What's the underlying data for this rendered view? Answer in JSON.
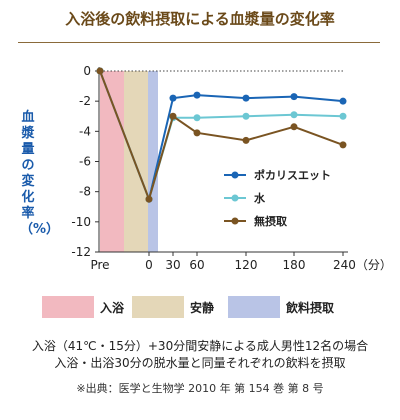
{
  "title": "入浴後の飲料摂取による血漿量の変化率",
  "chart_data": {
    "type": "line",
    "ylabel": "血漿量の変化率（%）",
    "ylim": [
      -12,
      0
    ],
    "yticks": [
      "0",
      "-2",
      "-4",
      "-6",
      "-8",
      "-10",
      "-12"
    ],
    "x_tick_labels": [
      "Pre",
      "0",
      "30",
      "60",
      "120",
      "180",
      "240（分）"
    ],
    "phases": [
      {
        "name": "入浴",
        "color": "#f2b9c0"
      },
      {
        "name": "安静",
        "color": "#e4d7b8"
      },
      {
        "name": "飲料摂取",
        "color": "#b9c4e6"
      }
    ],
    "series": [
      {
        "name": "ポカリスエット",
        "color": "#1a65b5",
        "marker": "circle",
        "x": [
          "Pre",
          "0",
          "30",
          "60",
          "120",
          "180",
          "240"
        ],
        "values": [
          0,
          -8.5,
          -1.8,
          -1.6,
          -1.8,
          -1.7,
          -2.0
        ]
      },
      {
        "name": "水",
        "color": "#6cc7d3",
        "marker": "circle",
        "x": [
          "Pre",
          "0",
          "30",
          "60",
          "120",
          "180",
          "240"
        ],
        "values": [
          0,
          -8.5,
          -3.1,
          -3.1,
          -3.0,
          -2.9,
          -3.0
        ]
      },
      {
        "name": "無摂取",
        "color": "#7a5422",
        "marker": "circle",
        "x": [
          "Pre",
          "0",
          "30",
          "60",
          "120",
          "180",
          "240"
        ],
        "values": [
          0,
          -8.5,
          -3.0,
          -4.1,
          -4.6,
          -3.7,
          -4.9
        ]
      }
    ]
  },
  "captions": [
    "入浴（41℃・15分）+30分間安静による成人男性12名の場合",
    "入浴・出浴30分の脱水量と同量それぞれの飲料を摂取"
  ],
  "source": "※出典：医学と生物学 2010 年 第 154 巻 第 8 号"
}
